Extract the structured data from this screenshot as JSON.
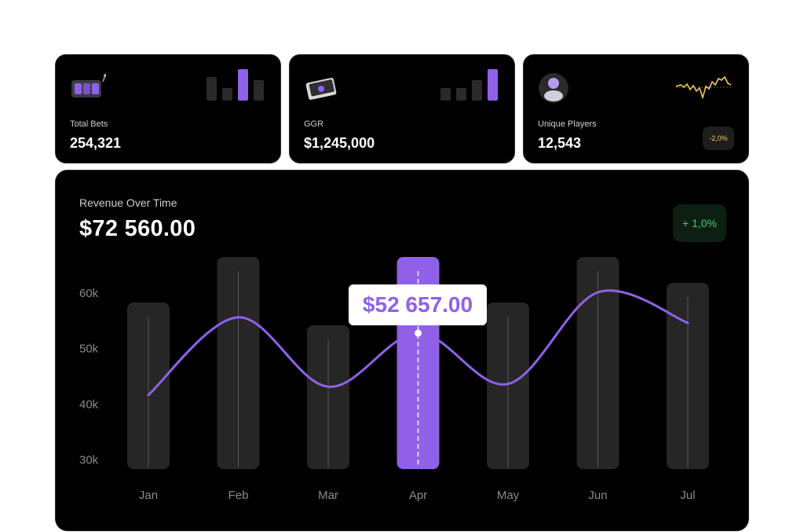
{
  "cards": [
    {
      "label": "Total Bets",
      "value": "254,321",
      "icon": "slot-machine-icon"
    },
    {
      "label": "GGR",
      "value": "$1,245,000",
      "icon": "cash-stack-icon"
    },
    {
      "label": "Unique Players",
      "value": "12,543",
      "icon": "user-avatar-icon",
      "change": "-2,0%"
    }
  ],
  "revenue": {
    "title": "Revenue Over Time",
    "total": "$72 560.00",
    "change": "+ 1,0%",
    "tooltip": "$52 657.00"
  },
  "colors": {
    "accent": "#9061e8",
    "bar": "#262626",
    "positive": "#3ecf6e",
    "warning": "#f2c94c"
  },
  "chart_data": {
    "type": "line",
    "categories": [
      "Jan",
      "Feb",
      "Mar",
      "Apr",
      "May",
      "Jun",
      "Jul"
    ],
    "series": [
      {
        "values": [
          41500,
          55500,
          43000,
          52657,
          43500,
          60000,
          54500
        ]
      }
    ],
    "highlighted_category": "Apr",
    "yticks": [
      "60k",
      "50k",
      "40k",
      "30k"
    ],
    "ytick_values": [
      60000,
      50000,
      40000,
      30000
    ],
    "ylim": [
      30000,
      60000
    ],
    "grid": false,
    "legend": "none"
  }
}
